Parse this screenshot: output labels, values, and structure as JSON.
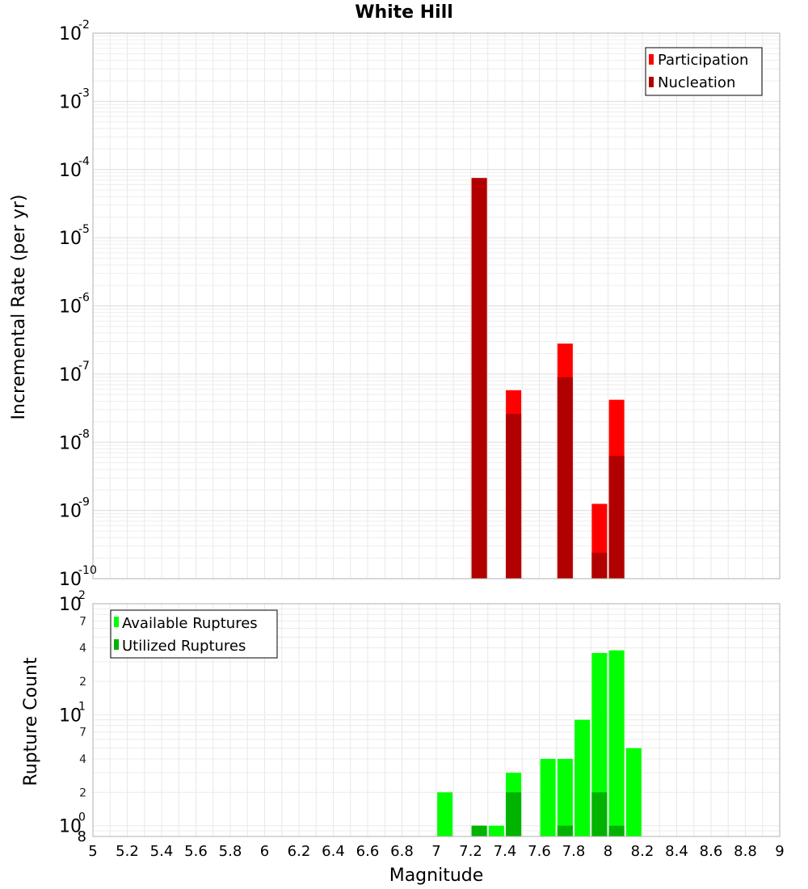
{
  "chart_data": [
    {
      "type": "bar",
      "title": "White Hill",
      "xlabel": "",
      "ylabel": "Incremental Rate (per yr)",
      "xlim": [
        5,
        9
      ],
      "ylim": [
        1e-10,
        0.01
      ],
      "yscale": "log",
      "grid": true,
      "legend": {
        "placement": "top-right",
        "entries": [
          "Participation",
          "Nucleation"
        ]
      },
      "y_ticks": [
        {
          "base": "10",
          "exp": "-10"
        },
        {
          "base": "10",
          "exp": "-9"
        },
        {
          "base": "10",
          "exp": "-8"
        },
        {
          "base": "10",
          "exp": "-7"
        },
        {
          "base": "10",
          "exp": "-6"
        },
        {
          "base": "10",
          "exp": "-5"
        },
        {
          "base": "10",
          "exp": "-4"
        },
        {
          "base": "10",
          "exp": "-3"
        },
        {
          "base": "10",
          "exp": "-2"
        }
      ],
      "series": [
        {
          "name": "Participation",
          "color": "#ff0000",
          "x": [
            7.25,
            7.45,
            7.75,
            7.95,
            8.05
          ],
          "values": [
            7.5e-05,
            5.8e-08,
            2.8e-07,
            1.25e-09,
            4.2e-08
          ]
        },
        {
          "name": "Nucleation",
          "color": "#b00000",
          "x": [
            7.25,
            7.45,
            7.75,
            7.95,
            8.05
          ],
          "values": [
            7.5e-05,
            2.6e-08,
            9e-08,
            2.4e-10,
            6.3e-09
          ]
        }
      ]
    },
    {
      "type": "bar",
      "title": "",
      "xlabel": "Magnitude",
      "ylabel": "Rupture Count",
      "xlim": [
        5,
        9
      ],
      "ylim": [
        0.8,
        100
      ],
      "yscale": "log",
      "grid": true,
      "legend": {
        "placement": "top-left",
        "entries": [
          "Available Ruptures",
          "Utilized Ruptures"
        ]
      },
      "x_ticks": [
        "5",
        "5.2",
        "5.4",
        "5.6",
        "5.8",
        "6",
        "6.2",
        "6.4",
        "6.6",
        "6.8",
        "7",
        "7.2",
        "7.4",
        "7.6",
        "7.8",
        "8",
        "8.2",
        "8.4",
        "8.6",
        "8.8",
        "9"
      ],
      "y_major_ticks": [
        {
          "base": "10",
          "exp": "0",
          "value": 1
        },
        {
          "base": "10",
          "exp": "1",
          "value": 10
        },
        {
          "base": "10",
          "exp": "2",
          "value": 100
        }
      ],
      "y_minor_ticks": [
        {
          "label": "8",
          "value": 0.8
        },
        {
          "label": "2",
          "value": 2
        },
        {
          "label": "4",
          "value": 4
        },
        {
          "label": "7",
          "value": 7
        },
        {
          "label": "2",
          "value": 20
        },
        {
          "label": "4",
          "value": 40
        },
        {
          "label": "7",
          "value": 70
        }
      ],
      "series": [
        {
          "name": "Available Ruptures",
          "color": "#00ff00",
          "x": [
            7.05,
            7.25,
            7.35,
            7.45,
            7.65,
            7.75,
            7.85,
            7.95,
            8.05,
            8.15
          ],
          "values": [
            2,
            1,
            1,
            3,
            4,
            4,
            9,
            36,
            38,
            5
          ]
        },
        {
          "name": "Utilized Ruptures",
          "color": "#00b300",
          "x": [
            7.25,
            7.45,
            7.75,
            7.95,
            8.05
          ],
          "values": [
            1,
            2,
            1,
            2,
            1
          ]
        }
      ]
    }
  ]
}
